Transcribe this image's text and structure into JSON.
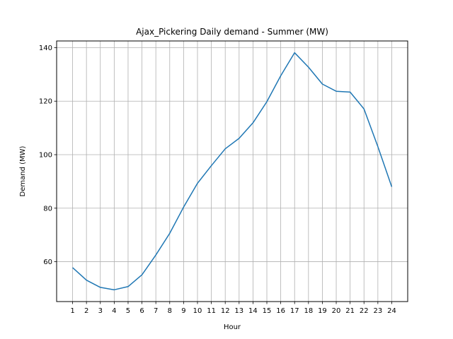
{
  "chart_data": {
    "type": "line",
    "title": "Ajax_Pickering Daily demand - Summer (MW)",
    "xlabel": "Hour",
    "ylabel": "Demand (MW)",
    "x": [
      1,
      2,
      3,
      4,
      5,
      6,
      7,
      8,
      9,
      10,
      11,
      12,
      13,
      14,
      15,
      16,
      17,
      18,
      19,
      20,
      21,
      22,
      23,
      24
    ],
    "series": [
      {
        "values": [
          57.8,
          53.1,
          50.4,
          49.5,
          50.7,
          55.1,
          62.5,
          70.6,
          80.4,
          89.3,
          95.9,
          102.2,
          106.1,
          111.9,
          119.8,
          129.5,
          138.1,
          132.7,
          126.4,
          123.7,
          123.4,
          117.1,
          103.0,
          88.0
        ]
      }
    ],
    "xticks": [
      "1",
      "2",
      "3",
      "4",
      "5",
      "6",
      "7",
      "8",
      "9",
      "10",
      "11",
      "12",
      "13",
      "14",
      "15",
      "16",
      "17",
      "18",
      "19",
      "20",
      "21",
      "22",
      "23",
      "24"
    ],
    "yticks": [
      60,
      80,
      100,
      120,
      140
    ],
    "xlim": [
      -0.15,
      25.15
    ],
    "ylim": [
      45.1,
      142.5
    ],
    "grid": true,
    "line_color": "#1f77b4"
  }
}
